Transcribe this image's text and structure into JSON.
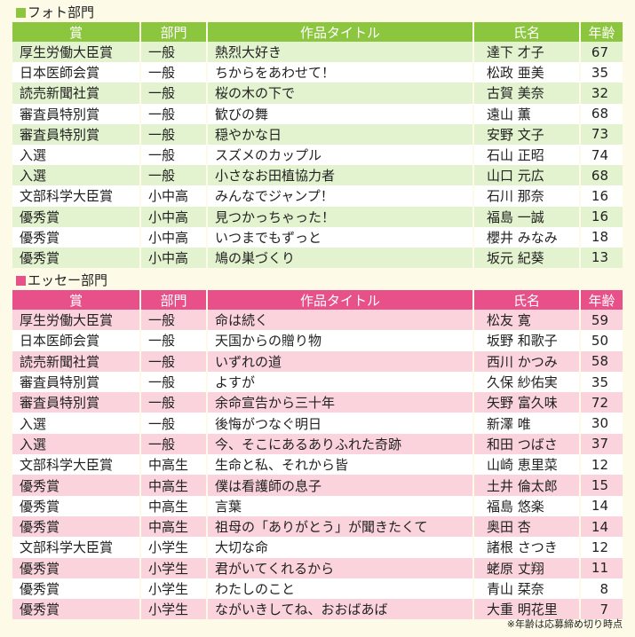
{
  "photo": {
    "title": "フォト部門",
    "color": "#8cc63f",
    "headers": [
      "賞",
      "部門",
      "作品タイトル",
      "氏名",
      "年齢"
    ],
    "rows": [
      {
        "award": "厚生労働大臣賞",
        "division": "一般",
        "title": "熱烈大好き",
        "name": "達下 才子",
        "age": "67"
      },
      {
        "award": "日本医師会賞",
        "division": "一般",
        "title": "ちからをあわせて！",
        "name": "松政 亜美",
        "age": "35"
      },
      {
        "award": "読売新聞社賞",
        "division": "一般",
        "title": "桜の木の下で",
        "name": "古賀 美奈",
        "age": "32"
      },
      {
        "award": "審査員特別賞",
        "division": "一般",
        "title": "歓びの舞",
        "name": "遠山 薫",
        "age": "68"
      },
      {
        "award": "審査員特別賞",
        "division": "一般",
        "title": "穏やかな日",
        "name": "安野 文子",
        "age": "73"
      },
      {
        "award": "入選",
        "division": "一般",
        "title": "スズメのカップル",
        "name": "石山 正昭",
        "age": "74"
      },
      {
        "award": "入選",
        "division": "一般",
        "title": "小さなお田植協力者",
        "name": "山口 元広",
        "age": "68"
      },
      {
        "award": "文部科学大臣賞",
        "division": "小中高",
        "title": "みんなでジャンプ！",
        "name": "石川 那奈",
        "age": "16"
      },
      {
        "award": "優秀賞",
        "division": "小中高",
        "title": "見つかっちゃった！",
        "name": "福島 一誠",
        "age": "16"
      },
      {
        "award": "優秀賞",
        "division": "小中高",
        "title": "いつまでもずっと",
        "name": "櫻井 みなみ",
        "age": "18"
      },
      {
        "award": "優秀賞",
        "division": "小中高",
        "title": "鳩の巣づくり",
        "name": "坂元 紀葵",
        "age": "13"
      }
    ]
  },
  "essay": {
    "title": "エッセー部門",
    "color": "#e8508a",
    "headers": [
      "賞",
      "部門",
      "作品タイトル",
      "氏名",
      "年齢"
    ],
    "rows": [
      {
        "award": "厚生労働大臣賞",
        "division": "一般",
        "title": "命は続く",
        "name": "松友 寛",
        "age": "59"
      },
      {
        "award": "日本医師会賞",
        "division": "一般",
        "title": "天国からの贈り物",
        "name": "坂野 和歌子",
        "age": "50"
      },
      {
        "award": "読売新聞社賞",
        "division": "一般",
        "title": "いずれの道",
        "name": "西川 かつみ",
        "age": "58"
      },
      {
        "award": "審査員特別賞",
        "division": "一般",
        "title": "よすが",
        "name": "久保 紗佑実",
        "age": "35"
      },
      {
        "award": "審査員特別賞",
        "division": "一般",
        "title": "余命宣告から三十年",
        "name": "矢野 富久味",
        "age": "72"
      },
      {
        "award": "入選",
        "division": "一般",
        "title": "後悔がつなぐ明日",
        "name": "新澤 唯",
        "age": "30"
      },
      {
        "award": "入選",
        "division": "一般",
        "title": "今、そこにあるありふれた奇跡",
        "name": "和田 つばさ",
        "age": "37"
      },
      {
        "award": "文部科学大臣賞",
        "division": "中高生",
        "title": "生命と私、それから皆",
        "name": "山崎 恵里菜",
        "age": "12"
      },
      {
        "award": "優秀賞",
        "division": "中高生",
        "title": "僕は看護師の息子",
        "name": "土井 倫太郎",
        "age": "15"
      },
      {
        "award": "優秀賞",
        "division": "中高生",
        "title": "言葉",
        "name": "福島 悠楽",
        "age": "14"
      },
      {
        "award": "優秀賞",
        "division": "中高生",
        "title": "祖母の「ありがとう」が聞きたくて",
        "name": "奥田 杏",
        "age": "14"
      },
      {
        "award": "文部科学大臣賞",
        "division": "小学生",
        "title": "大切な命",
        "name": "諸根 さつき",
        "age": "12"
      },
      {
        "award": "優秀賞",
        "division": "小学生",
        "title": "君がいてくれるから",
        "name": "蛯原 丈翔",
        "age": "11"
      },
      {
        "award": "優秀賞",
        "division": "小学生",
        "title": "わたしのこと",
        "name": "青山 栞奈",
        "age": "8"
      },
      {
        "award": "優秀賞",
        "division": "小学生",
        "title": "ながいきしてね、おおばあば",
        "name": "大重 明花里",
        "age": "7"
      }
    ]
  },
  "footnote": "※年齢は応募締め切り時点"
}
